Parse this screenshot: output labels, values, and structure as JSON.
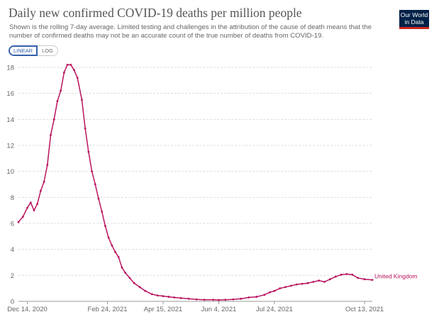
{
  "header": {
    "title": "Daily new confirmed COVID-19 deaths per million people",
    "subtitle": "Shown is the rolling 7-day average. Limited testing and challenges in the attribution of the cause of death means that the number of confirmed deaths may not be an accurate count of the true number of deaths from COVID-19.",
    "logo_line1": "Our World",
    "logo_line2": "in Data"
  },
  "controls": {
    "linear_label": "LINEAR",
    "log_label": "LOG",
    "selected": "LINEAR"
  },
  "colors": {
    "series": "#b8135f",
    "grid": "#dddddd",
    "axis": "#999999",
    "accent": "#3360a9",
    "logo_bg": "#002147",
    "logo_bar": "#ce261e"
  },
  "chart_data": {
    "type": "line",
    "title": "Daily new confirmed COVID-19 deaths per million people",
    "xlabel": "",
    "ylabel": "",
    "ylim": [
      0,
      18
    ],
    "xlim": [
      "2020-12-06",
      "2021-10-20"
    ],
    "yticks": [
      0,
      2,
      4,
      6,
      8,
      10,
      12,
      14,
      16,
      18
    ],
    "xticks": [
      {
        "date": "2020-12-14",
        "label": "Dec 14, 2020"
      },
      {
        "date": "2021-02-24",
        "label": "Feb 24, 2021"
      },
      {
        "date": "2021-04-15",
        "label": "Apr 15, 2021"
      },
      {
        "date": "2021-06-04",
        "label": "Jun 4, 2021"
      },
      {
        "date": "2021-07-24",
        "label": "Jul 24, 2021"
      },
      {
        "date": "2021-10-13",
        "label": "Oct 13, 2021"
      }
    ],
    "grid": true,
    "legend": "end-of-line label",
    "series": [
      {
        "name": "United Kingdom",
        "x": [
          "2020-12-06",
          "2020-12-10",
          "2020-12-14",
          "2020-12-17",
          "2020-12-20",
          "2020-12-23",
          "2020-12-26",
          "2020-12-29",
          "2021-01-01",
          "2021-01-04",
          "2021-01-07",
          "2021-01-10",
          "2021-01-13",
          "2021-01-16",
          "2021-01-19",
          "2021-01-22",
          "2021-01-25",
          "2021-01-28",
          "2021-02-01",
          "2021-02-04",
          "2021-02-07",
          "2021-02-10",
          "2021-02-13",
          "2021-02-16",
          "2021-02-19",
          "2021-02-22",
          "2021-02-25",
          "2021-02-28",
          "2021-03-03",
          "2021-03-06",
          "2021-03-09",
          "2021-03-12",
          "2021-03-16",
          "2021-03-20",
          "2021-03-25",
          "2021-03-30",
          "2021-04-05",
          "2021-04-10",
          "2021-04-15",
          "2021-04-20",
          "2021-04-25",
          "2021-05-01",
          "2021-05-08",
          "2021-05-15",
          "2021-05-22",
          "2021-05-30",
          "2021-06-04",
          "2021-06-10",
          "2021-06-17",
          "2021-06-24",
          "2021-07-01",
          "2021-07-08",
          "2021-07-15",
          "2021-07-20",
          "2021-07-24",
          "2021-07-29",
          "2021-08-03",
          "2021-08-08",
          "2021-08-13",
          "2021-08-18",
          "2021-08-23",
          "2021-08-28",
          "2021-09-02",
          "2021-09-07",
          "2021-09-12",
          "2021-09-17",
          "2021-09-22",
          "2021-09-27",
          "2021-10-02",
          "2021-10-07",
          "2021-10-13",
          "2021-10-20"
        ],
        "values": [
          6.1,
          6.5,
          7.2,
          7.6,
          7.0,
          7.5,
          8.5,
          9.2,
          10.5,
          12.8,
          14.0,
          15.4,
          16.2,
          17.6,
          18.2,
          18.2,
          17.8,
          17.2,
          15.5,
          13.3,
          11.5,
          10.0,
          9.0,
          7.9,
          6.9,
          5.8,
          4.9,
          4.3,
          3.8,
          3.4,
          2.6,
          2.2,
          1.8,
          1.4,
          1.1,
          0.8,
          0.55,
          0.45,
          0.4,
          0.35,
          0.3,
          0.25,
          0.2,
          0.15,
          0.12,
          0.12,
          0.1,
          0.12,
          0.15,
          0.2,
          0.3,
          0.35,
          0.5,
          0.7,
          0.8,
          1.0,
          1.1,
          1.2,
          1.3,
          1.35,
          1.4,
          1.5,
          1.6,
          1.5,
          1.7,
          1.9,
          2.05,
          2.1,
          2.05,
          1.8,
          1.7,
          1.65
        ]
      }
    ]
  }
}
